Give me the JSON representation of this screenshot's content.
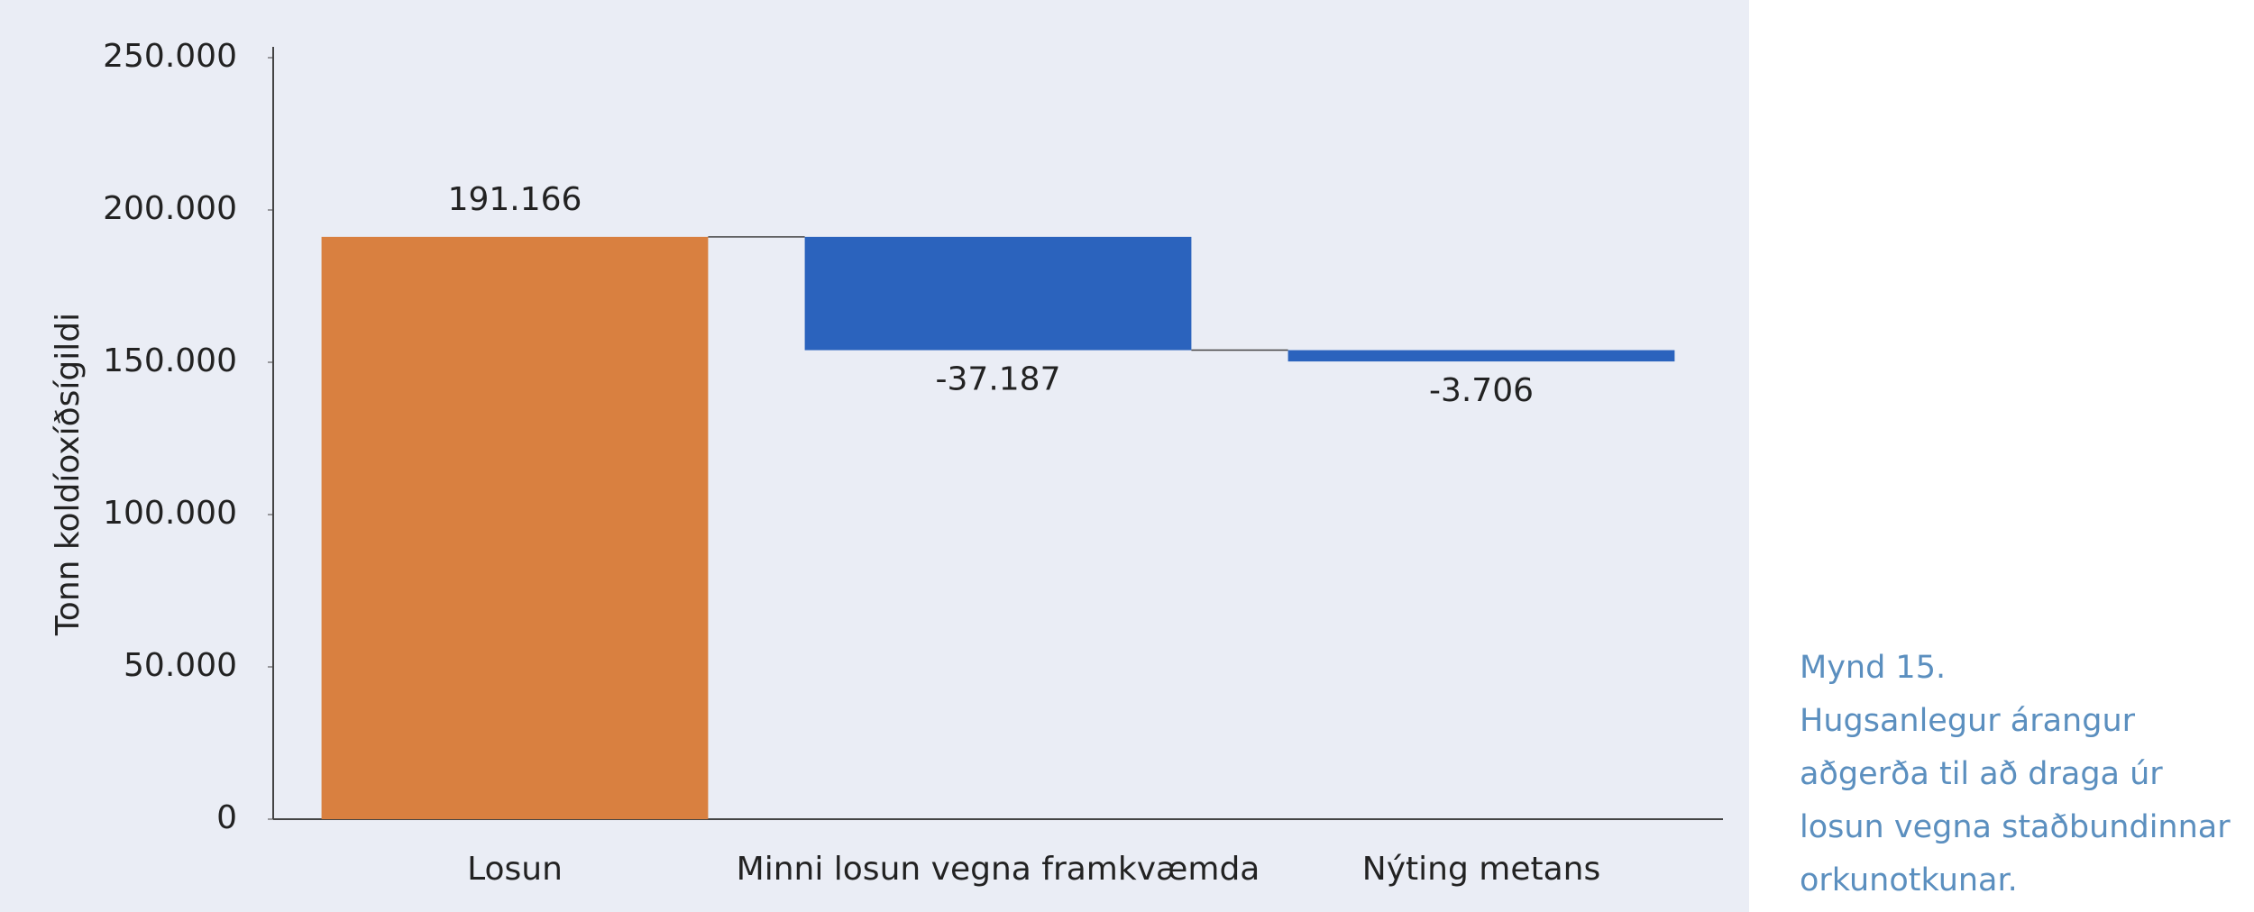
{
  "chart_data": {
    "type": "waterfall",
    "y_label": "Tonn koldíoxíðsígildi",
    "categories": [
      "Losun",
      "Minni losun vegna framkvæmda",
      "Nýting metans"
    ],
    "values": [
      191166,
      -37187,
      -3706
    ],
    "value_labels": [
      "191.166",
      "-37.187",
      "-3.706"
    ],
    "colors": [
      "#d98040",
      "#2b63bd",
      "#2b63bd"
    ],
    "ylim": [
      0,
      250000
    ],
    "yticks": [
      0,
      {
        "value": 50000,
        "label": "50.000"
      },
      {
        "value": 100000,
        "label": "100.000"
      },
      {
        "value": 150000,
        "label": "150.000"
      },
      {
        "value": 200000,
        "label": "200.000"
      },
      {
        "value": 250000,
        "label": "250.000"
      }
    ]
  },
  "caption": {
    "number": "Mynd 15.",
    "text": "Hugsanlegur árangur aðgerða til að draga úr losun vegna staðbundinnar orkunotkunar."
  }
}
